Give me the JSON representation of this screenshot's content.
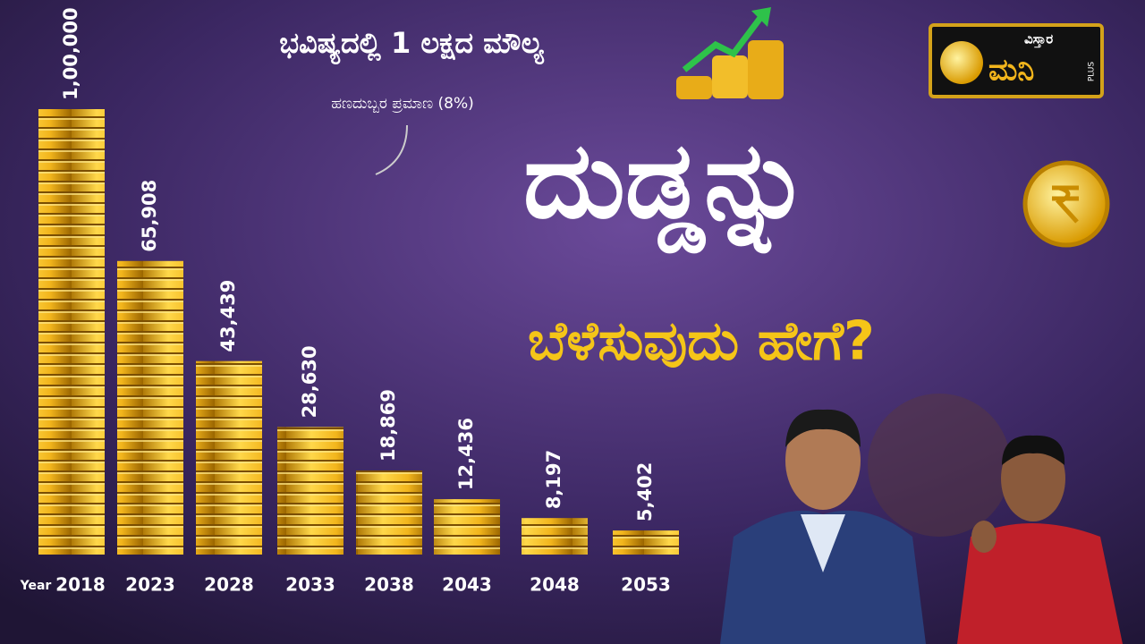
{
  "chart_data": {
    "type": "bar",
    "title": "ಭವಿಷ್ಯದಲ್ಲಿ 1 ಲಕ್ಷದ ಮೌಲ್ಯ",
    "subtitle": "ಹಣದುಬ್ಬರ ಪ್ರಮಾಣ (8%)",
    "x_label": "Year",
    "categories": [
      "2018",
      "2023",
      "2028",
      "2033",
      "2038",
      "2043",
      "2048",
      "2053"
    ],
    "values": [
      100000,
      65908,
      43439,
      28630,
      18869,
      12436,
      8197,
      5402
    ],
    "value_labels": [
      "1,00,000",
      "65,908",
      "43,439",
      "28,630",
      "18,869",
      "12,436",
      "8,197",
      "5,402"
    ],
    "color": "#f2b51c"
  },
  "headline": [
    "ದುಡ್ಡನ್ನು",
    "ಬೆಳೆಸುವುದು ಹೇಗೆ?"
  ],
  "logo": {
    "top": "ವಿಸ್ತಾರ",
    "main": "ಮನಿ",
    "badge": "PLUS"
  }
}
